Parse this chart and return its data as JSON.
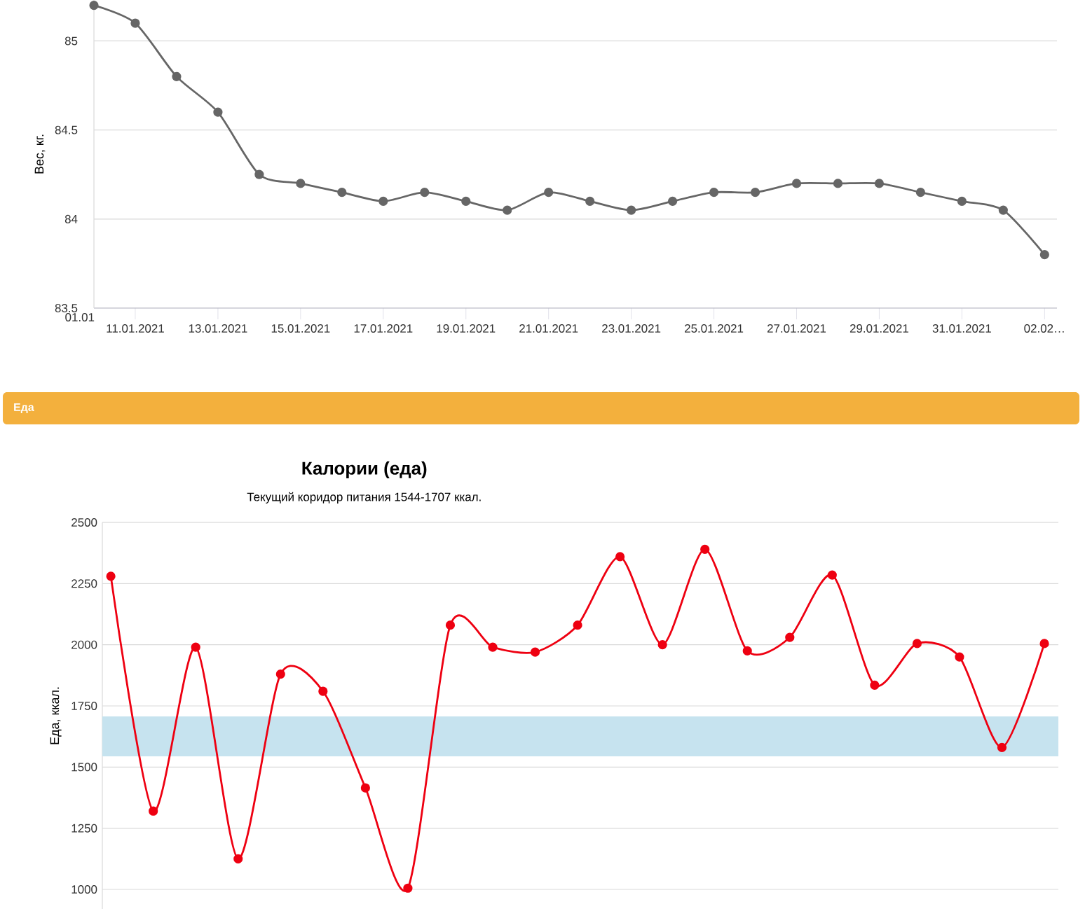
{
  "chart_data": [
    {
      "type": "line",
      "ylabel": "Вес, кг.",
      "categories": [
        "01.01",
        "11.01.2021",
        null,
        "13.01.2021",
        null,
        "15.01.2021",
        null,
        "17.01.2021",
        null,
        "19.01.2021",
        null,
        "21.01.2021",
        null,
        "23.01.2021",
        null,
        "25.01.2021",
        null,
        "27.01.2021",
        null,
        "29.01.2021",
        null,
        "31.01.2021",
        null,
        "02.02…"
      ],
      "series": [
        {
          "color": "#666666",
          "values": [
            85.2,
            85.1,
            84.8,
            84.6,
            84.25,
            84.2,
            84.15,
            84.1,
            84.15,
            84.1,
            84.05,
            84.15,
            84.1,
            84.05,
            84.1,
            84.15,
            84.15,
            84.2,
            84.2,
            84.2,
            84.15,
            84.1,
            84.05,
            83.8
          ]
        }
      ],
      "ylim": [
        83.5,
        85.23
      ],
      "yticks": [
        83.5,
        84,
        84.5,
        85
      ],
      "grid": "y",
      "marker": "circle",
      "line_style": "solid"
    },
    {
      "type": "line",
      "title": "Калории (еда)",
      "subtitle": "Текущий коридор питания 1544-1707 ккал.",
      "ylabel": "Еда, ккал.",
      "annotations": [
        "Еда"
      ],
      "categories": [
        null,
        null,
        null,
        null,
        null,
        null,
        null,
        null,
        null,
        null,
        null,
        null,
        null,
        null,
        null,
        null,
        null,
        null,
        null,
        null,
        null,
        null,
        null
      ],
      "series": [
        {
          "color": "#ee0011",
          "values": [
            2280,
            1320,
            1990,
            1125,
            1880,
            1810,
            1415,
            1005,
            2080,
            1990,
            1970,
            2080,
            2360,
            2000,
            2390,
            1975,
            2030,
            2285,
            1835,
            2005,
            1950,
            1580,
            2005
          ]
        }
      ],
      "ylim": [
        920,
        2500
      ],
      "yticks": [
        1000,
        1250,
        1500,
        1750,
        2000,
        2250,
        2500
      ],
      "grid": "y",
      "marker": "circle",
      "line_style": "solid",
      "bands": [
        {
          "axis": "y",
          "from": 1544,
          "to": 1707,
          "color": "#c6e3ef"
        }
      ]
    }
  ]
}
